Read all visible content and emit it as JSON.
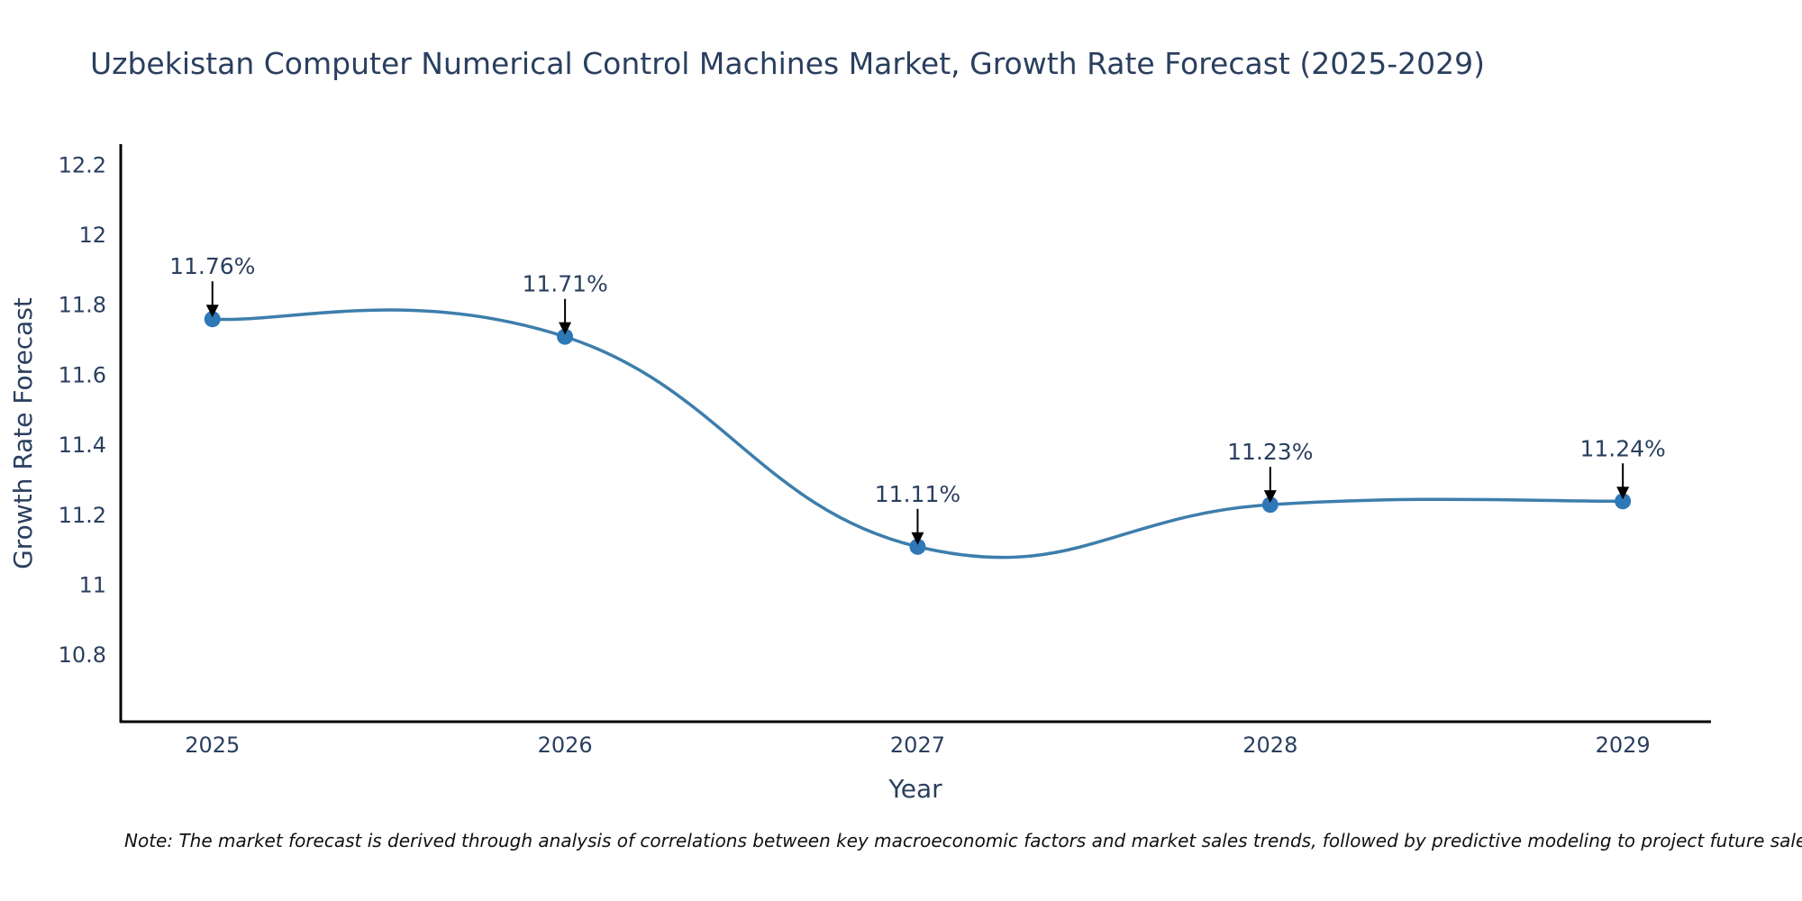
{
  "chart_data": {
    "type": "line",
    "title": "Uzbekistan Computer Numerical Control Machines Market, Growth Rate Forecast (2025-2029)",
    "xlabel": "Year",
    "ylabel": "Growth Rate Forecast",
    "x": [
      2025,
      2026,
      2027,
      2028,
      2029
    ],
    "series": [
      {
        "name": "Growth Rate Forecast",
        "values": [
          11.76,
          11.71,
          11.11,
          11.23,
          11.24
        ],
        "color": "#3d7eab",
        "marker_color": "#2e78b8",
        "line_shape": "spline"
      }
    ],
    "annotations": [
      "11.76%",
      "11.71%",
      "11.11%",
      "11.23%",
      "11.24%"
    ],
    "xticks": [
      "2025",
      "2026",
      "2027",
      "2028",
      "2029"
    ],
    "yticks": [
      "10.8",
      "11",
      "11.2",
      "11.4",
      "11.6",
      "11.8",
      "12",
      "12.2"
    ],
    "ytick_values": [
      10.8,
      11.0,
      11.2,
      11.4,
      11.6,
      11.8,
      12.0,
      12.2
    ],
    "xlim": [
      2024.74,
      2029.25
    ],
    "ylim": [
      10.61,
      12.26
    ],
    "grid": false,
    "legend": "none"
  },
  "note": "Note: The market forecast is derived through analysis of correlations between key macroeconomic factors and market sales trends, followed by predictive modeling to project future sales."
}
